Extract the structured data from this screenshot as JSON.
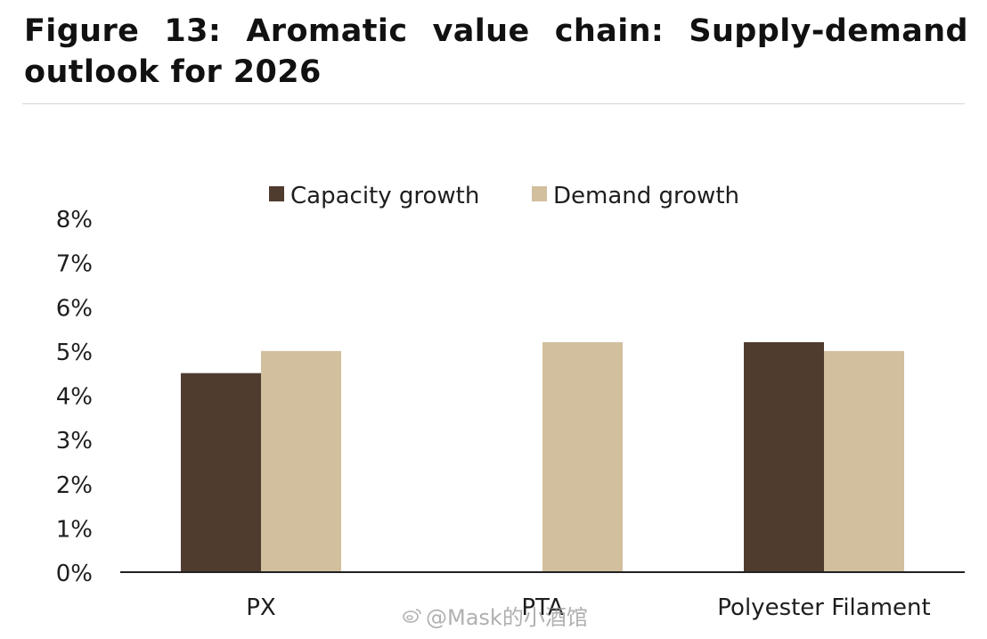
{
  "figure": {
    "title": "Figure 13: Aromatic value chain: Supply-demand outlook for 2026"
  },
  "watermark": {
    "text": "@Mask的小酒馆"
  },
  "chart_data": {
    "type": "bar",
    "title": "",
    "xlabel": "",
    "ylabel": "",
    "categories": [
      "PX",
      "PTA",
      "Polyester Filament"
    ],
    "series": [
      {
        "name": "Capacity growth",
        "color": "#4f3c2f",
        "values": [
          4.5,
          0,
          5.2
        ]
      },
      {
        "name": "Demand growth",
        "color": "#d1bf9d",
        "values": [
          5.0,
          5.2,
          5.0
        ]
      }
    ],
    "ylim": [
      0,
      8
    ],
    "yticks": [
      0,
      1,
      2,
      3,
      4,
      5,
      6,
      7,
      8
    ],
    "ytick_labels": [
      "0%",
      "1%",
      "2%",
      "3%",
      "4%",
      "5%",
      "6%",
      "7%",
      "8%"
    ],
    "grid": false,
    "legend_position": "top-center",
    "axis_color": "#222222"
  }
}
